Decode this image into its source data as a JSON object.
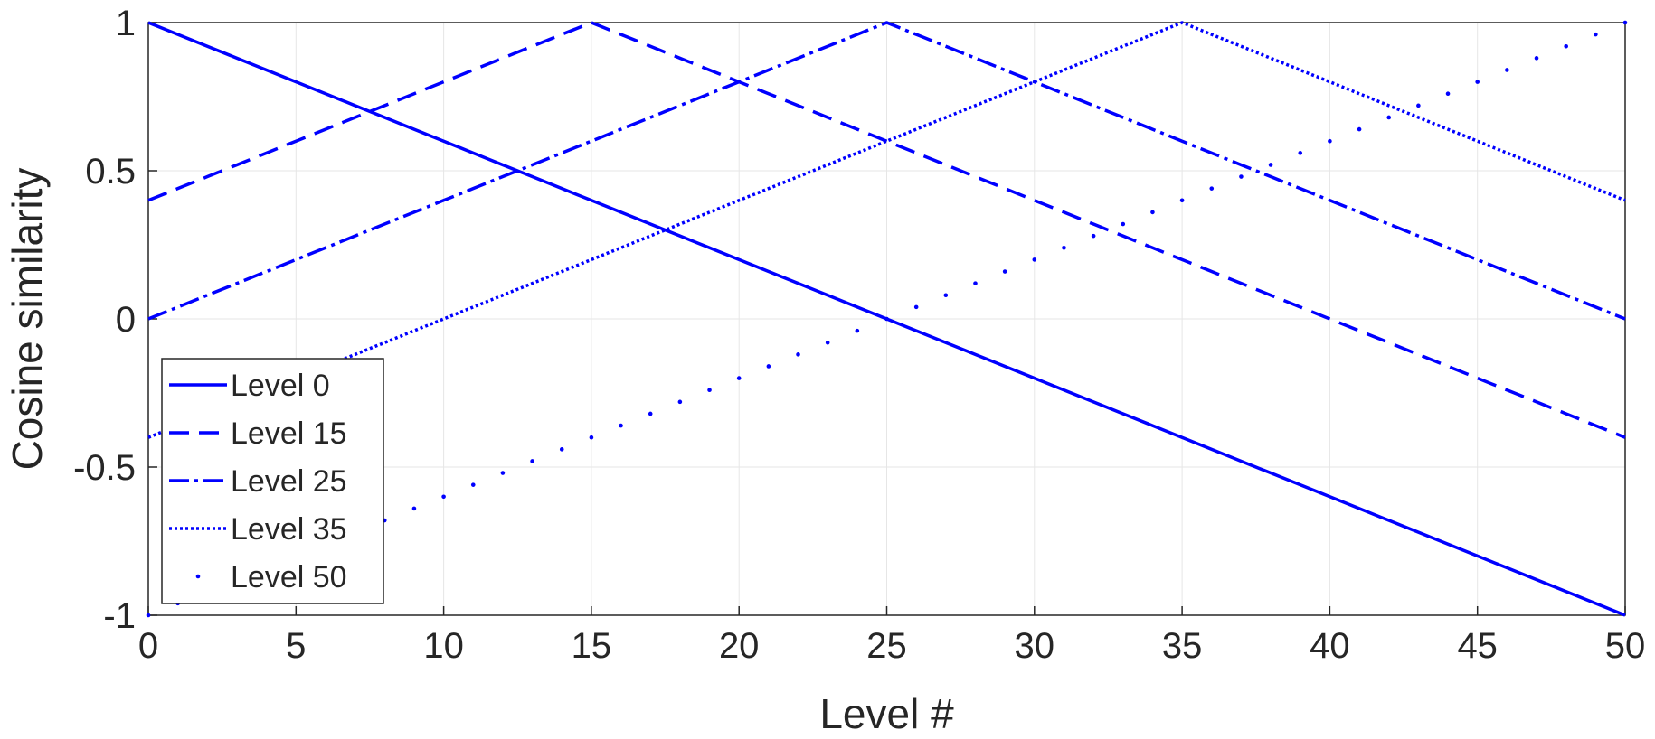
{
  "chart_data": {
    "type": "line",
    "title": "",
    "xlabel": "Level #",
    "ylabel": "Cosine similarity",
    "xlim": [
      0,
      50
    ],
    "ylim": [
      -1,
      1
    ],
    "xticks": [
      0,
      5,
      10,
      15,
      20,
      25,
      30,
      35,
      40,
      45,
      50
    ],
    "yticks": [
      -1,
      -0.5,
      0,
      0.5,
      1
    ],
    "grid": true,
    "legend_position": "bottom-left",
    "series_color": "#0000ff",
    "x": [
      0,
      1,
      2,
      3,
      4,
      5,
      6,
      7,
      8,
      9,
      10,
      11,
      12,
      13,
      14,
      15,
      16,
      17,
      18,
      19,
      20,
      21,
      22,
      23,
      24,
      25,
      26,
      27,
      28,
      29,
      30,
      31,
      32,
      33,
      34,
      35,
      36,
      37,
      38,
      39,
      40,
      41,
      42,
      43,
      44,
      45,
      46,
      47,
      48,
      49,
      50
    ],
    "series": [
      {
        "name": "Level 0",
        "style": "solid",
        "values": [
          1,
          0.96,
          0.92,
          0.88,
          0.84,
          0.8,
          0.76,
          0.72,
          0.68,
          0.64,
          0.6,
          0.56,
          0.52,
          0.48,
          0.44,
          0.4,
          0.36,
          0.32,
          0.28,
          0.24,
          0.2,
          0.16,
          0.12,
          0.08,
          0.04,
          0,
          -0.04,
          -0.08,
          -0.12,
          -0.16,
          -0.2,
          -0.24,
          -0.28,
          -0.32,
          -0.36,
          -0.4,
          -0.44,
          -0.48,
          -0.52,
          -0.56,
          -0.6,
          -0.64,
          -0.68,
          -0.72,
          -0.76,
          -0.8,
          -0.84,
          -0.88,
          -0.92,
          -0.96,
          -1
        ]
      },
      {
        "name": "Level 15",
        "style": "dashed",
        "values": [
          0.4,
          0.44,
          0.48,
          0.52,
          0.56,
          0.6,
          0.64,
          0.68,
          0.72,
          0.76,
          0.8,
          0.84,
          0.88,
          0.92,
          0.96,
          1,
          0.96,
          0.92,
          0.88,
          0.84,
          0.8,
          0.76,
          0.72,
          0.68,
          0.64,
          0.6,
          0.56,
          0.52,
          0.48,
          0.44,
          0.4,
          0.36,
          0.32,
          0.28,
          0.24,
          0.2,
          0.16,
          0.12,
          0.08,
          0.04,
          0,
          -0.04,
          -0.08,
          -0.12,
          -0.16,
          -0.2,
          -0.24,
          -0.28,
          -0.32,
          -0.36,
          -0.4
        ]
      },
      {
        "name": "Level 25",
        "style": "dashdot",
        "values": [
          0,
          0.04,
          0.08,
          0.12,
          0.16,
          0.2,
          0.24,
          0.28,
          0.32,
          0.36,
          0.4,
          0.44,
          0.48,
          0.52,
          0.56,
          0.6,
          0.64,
          0.68,
          0.72,
          0.76,
          0.8,
          0.84,
          0.88,
          0.92,
          0.96,
          1,
          0.96,
          0.92,
          0.88,
          0.84,
          0.8,
          0.76,
          0.72,
          0.68,
          0.64,
          0.6,
          0.56,
          0.52,
          0.48,
          0.44,
          0.4,
          0.36,
          0.32,
          0.28,
          0.24,
          0.2,
          0.16,
          0.12,
          0.08,
          0.04,
          0
        ]
      },
      {
        "name": "Level 35",
        "style": "dotted",
        "values": [
          -0.4,
          -0.36,
          -0.32,
          -0.28,
          -0.24,
          -0.2,
          -0.16,
          -0.12,
          -0.08,
          -0.04,
          0,
          0.04,
          0.08,
          0.12,
          0.16,
          0.2,
          0.24,
          0.28,
          0.32,
          0.36,
          0.4,
          0.44,
          0.48,
          0.52,
          0.56,
          0.6,
          0.64,
          0.68,
          0.72,
          0.76,
          0.8,
          0.84,
          0.88,
          0.92,
          0.96,
          1,
          0.96,
          0.92,
          0.88,
          0.84,
          0.8,
          0.76,
          0.72,
          0.68,
          0.64,
          0.6,
          0.56,
          0.52,
          0.48,
          0.44,
          0.4
        ]
      },
      {
        "name": "Level 50",
        "style": "point",
        "values": [
          -1,
          -0.96,
          -0.92,
          -0.88,
          -0.84,
          -0.8,
          -0.76,
          -0.72,
          -0.68,
          -0.64,
          -0.6,
          -0.56,
          -0.52,
          -0.48,
          -0.44,
          -0.4,
          -0.36,
          -0.32,
          -0.28,
          -0.24,
          -0.2,
          -0.16,
          -0.12,
          -0.08,
          -0.04,
          0,
          0.04,
          0.08,
          0.12,
          0.16,
          0.2,
          0.24,
          0.28,
          0.32,
          0.36,
          0.4,
          0.44,
          0.48,
          0.52,
          0.56,
          0.6,
          0.64,
          0.68,
          0.72,
          0.76,
          0.8,
          0.84,
          0.88,
          0.92,
          0.96,
          1
        ]
      }
    ]
  }
}
